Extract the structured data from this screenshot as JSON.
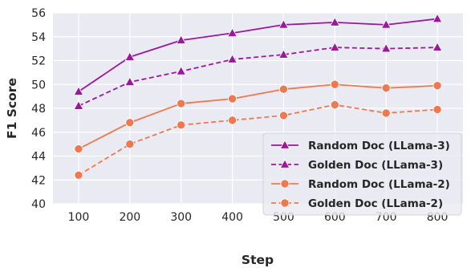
{
  "chart_data": {
    "type": "line",
    "xlabel": "Step",
    "ylabel": "F1 Score",
    "x": [
      100,
      200,
      300,
      400,
      500,
      600,
      700,
      800
    ],
    "xlim": [
      50,
      850
    ],
    "ylim": [
      40,
      56
    ],
    "yticks": [
      40,
      42,
      44,
      46,
      48,
      50,
      52,
      54,
      56
    ],
    "grid": true,
    "background": "#eaeaf2",
    "legend_position": "lower-right",
    "series": [
      {
        "name": "Random Doc (LLama-3)",
        "values": [
          49.4,
          52.3,
          53.7,
          54.3,
          55.0,
          55.2,
          55.0,
          55.5
        ],
        "color": "#9c179e",
        "marker": "triangle",
        "dashed": false
      },
      {
        "name": "Golden Doc (LLama-3)",
        "values": [
          48.2,
          50.2,
          51.1,
          52.1,
          52.5,
          53.1,
          53.0,
          53.1
        ],
        "color": "#9c179e",
        "marker": "triangle",
        "dashed": true
      },
      {
        "name": "Random Doc (LLama-2)",
        "values": [
          44.6,
          46.8,
          48.4,
          48.8,
          49.6,
          50.0,
          49.7,
          49.9
        ],
        "color": "#f0784f",
        "marker": "circle",
        "dashed": false
      },
      {
        "name": "Golden Doc (LLama-2)",
        "values": [
          42.4,
          45.0,
          46.6,
          47.0,
          47.4,
          48.3,
          47.6,
          47.9
        ],
        "color": "#f0784f",
        "marker": "circle",
        "dashed": true
      }
    ]
  }
}
